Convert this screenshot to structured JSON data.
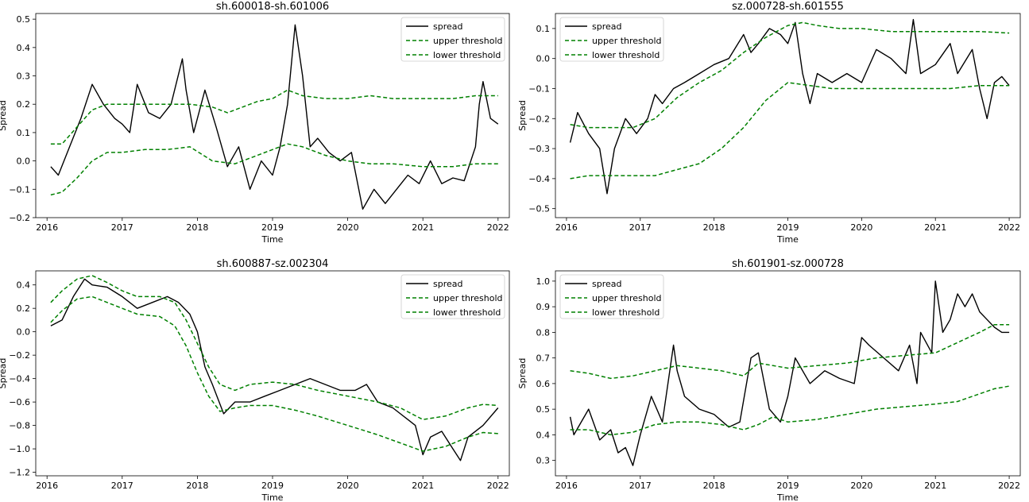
{
  "chart_data": [
    {
      "type": "line",
      "title": "sh.600018-sh.601006",
      "xlabel": "Time",
      "ylabel": "Spread",
      "xlim": [
        2015.85,
        2022.15
      ],
      "ylim": [
        -0.2,
        0.52
      ],
      "xticks": [
        2016,
        2017,
        2018,
        2019,
        2020,
        2021,
        2022
      ],
      "xtick_labels": [
        "2016",
        "2017",
        "2018",
        "2019",
        "2020",
        "2021",
        "2022"
      ],
      "yticks": [
        -0.2,
        -0.1,
        0.0,
        0.1,
        0.2,
        0.3,
        0.4,
        0.5
      ],
      "ytick_labels": [
        "−0.2",
        "−0.1",
        "0.0",
        "0.1",
        "0.2",
        "0.3",
        "0.4",
        "0.5"
      ],
      "legend_position": "top-right",
      "series": [
        {
          "name": "spread",
          "color": "#000000",
          "style": "solid",
          "x": [
            2016.05,
            2016.15,
            2016.3,
            2016.45,
            2016.6,
            2016.75,
            2016.9,
            2017.0,
            2017.1,
            2017.2,
            2017.35,
            2017.5,
            2017.65,
            2017.8,
            2017.85,
            2017.95,
            2018.1,
            2018.25,
            2018.4,
            2018.55,
            2018.7,
            2018.85,
            2019.0,
            2019.1,
            2019.2,
            2019.3,
            2019.4,
            2019.5,
            2019.6,
            2019.75,
            2019.9,
            2020.05,
            2020.2,
            2020.35,
            2020.5,
            2020.65,
            2020.8,
            2020.95,
            2021.1,
            2021.25,
            2021.4,
            2021.55,
            2021.7,
            2021.75,
            2021.8,
            2021.9,
            2022.0
          ],
          "y": [
            -0.02,
            -0.05,
            0.05,
            0.15,
            0.27,
            0.2,
            0.15,
            0.13,
            0.1,
            0.27,
            0.17,
            0.15,
            0.2,
            0.36,
            0.25,
            0.1,
            0.25,
            0.12,
            -0.02,
            0.05,
            -0.1,
            0.0,
            -0.05,
            0.05,
            0.2,
            0.48,
            0.3,
            0.05,
            0.08,
            0.03,
            0.0,
            0.03,
            -0.17,
            -0.1,
            -0.15,
            -0.1,
            -0.05,
            -0.08,
            0.0,
            -0.08,
            -0.06,
            -0.07,
            0.05,
            0.2,
            0.28,
            0.15,
            0.13
          ]
        },
        {
          "name": "upper threshold",
          "color": "#008000",
          "style": "dashed",
          "x": [
            2016.05,
            2016.2,
            2016.4,
            2016.6,
            2016.8,
            2017.0,
            2017.3,
            2017.6,
            2017.9,
            2018.2,
            2018.4,
            2018.6,
            2018.8,
            2019.0,
            2019.2,
            2019.4,
            2019.7,
            2020.0,
            2020.3,
            2020.6,
            2021.0,
            2021.4,
            2021.7,
            2022.0
          ],
          "y": [
            0.06,
            0.06,
            0.12,
            0.18,
            0.2,
            0.2,
            0.2,
            0.2,
            0.2,
            0.19,
            0.17,
            0.19,
            0.21,
            0.22,
            0.25,
            0.23,
            0.22,
            0.22,
            0.23,
            0.22,
            0.22,
            0.22,
            0.23,
            0.23
          ]
        },
        {
          "name": "lower threshold",
          "color": "#008000",
          "style": "dashed",
          "x": [
            2016.05,
            2016.2,
            2016.4,
            2016.6,
            2016.8,
            2017.0,
            2017.3,
            2017.6,
            2017.9,
            2018.2,
            2018.5,
            2018.8,
            2019.0,
            2019.2,
            2019.4,
            2019.7,
            2020.0,
            2020.3,
            2020.6,
            2021.0,
            2021.4,
            2021.7,
            2022.0
          ],
          "y": [
            -0.12,
            -0.11,
            -0.06,
            0.0,
            0.03,
            0.03,
            0.04,
            0.04,
            0.05,
            0.0,
            -0.01,
            0.02,
            0.04,
            0.06,
            0.05,
            0.02,
            0.0,
            -0.01,
            -0.01,
            -0.02,
            -0.02,
            -0.01,
            -0.01
          ]
        }
      ]
    },
    {
      "type": "line",
      "title": "sz.000728-sh.601555",
      "xlabel": "Time",
      "ylabel": "Spread",
      "xlim": [
        2015.85,
        2022.15
      ],
      "ylim": [
        -0.53,
        0.15
      ],
      "xticks": [
        2016,
        2017,
        2018,
        2019,
        2020,
        2021,
        2022
      ],
      "xtick_labels": [
        "2016",
        "2017",
        "2018",
        "2019",
        "2020",
        "2021",
        "2022"
      ],
      "yticks": [
        -0.5,
        -0.4,
        -0.3,
        -0.2,
        -0.1,
        0.0,
        0.1
      ],
      "ytick_labels": [
        "−0.5",
        "−0.4",
        "−0.3",
        "−0.2",
        "−0.1",
        "0.0",
        "0.1"
      ],
      "legend_position": "top-left",
      "series": [
        {
          "name": "spread",
          "color": "#000000",
          "style": "solid",
          "x": [
            2016.05,
            2016.15,
            2016.3,
            2016.45,
            2016.55,
            2016.65,
            2016.8,
            2016.95,
            2017.1,
            2017.2,
            2017.3,
            2017.45,
            2017.6,
            2017.8,
            2018.0,
            2018.2,
            2018.4,
            2018.5,
            2018.6,
            2018.75,
            2018.9,
            2019.0,
            2019.1,
            2019.2,
            2019.3,
            2019.4,
            2019.6,
            2019.8,
            2020.0,
            2020.2,
            2020.4,
            2020.6,
            2020.7,
            2020.8,
            2021.0,
            2021.2,
            2021.3,
            2021.5,
            2021.6,
            2021.7,
            2021.8,
            2021.9,
            2022.0
          ],
          "y": [
            -0.28,
            -0.18,
            -0.25,
            -0.3,
            -0.45,
            -0.3,
            -0.2,
            -0.25,
            -0.2,
            -0.12,
            -0.15,
            -0.1,
            -0.08,
            -0.05,
            -0.02,
            0.0,
            0.08,
            0.02,
            0.05,
            0.1,
            0.08,
            0.05,
            0.12,
            -0.05,
            -0.15,
            -0.05,
            -0.08,
            -0.05,
            -0.08,
            0.03,
            0.0,
            -0.05,
            0.13,
            -0.05,
            -0.02,
            0.05,
            -0.05,
            0.03,
            -0.1,
            -0.2,
            -0.08,
            -0.06,
            -0.09
          ]
        },
        {
          "name": "upper threshold",
          "color": "#008000",
          "style": "dashed",
          "x": [
            2016.05,
            2016.3,
            2016.6,
            2016.9,
            2017.2,
            2017.5,
            2017.8,
            2018.1,
            2018.4,
            2018.7,
            2019.0,
            2019.2,
            2019.4,
            2019.7,
            2020.0,
            2020.4,
            2020.8,
            2021.2,
            2021.6,
            2022.0
          ],
          "y": [
            -0.22,
            -0.23,
            -0.23,
            -0.23,
            -0.2,
            -0.13,
            -0.08,
            -0.04,
            0.02,
            0.07,
            0.11,
            0.12,
            0.11,
            0.1,
            0.1,
            0.09,
            0.09,
            0.09,
            0.09,
            0.085
          ]
        },
        {
          "name": "lower threshold",
          "color": "#008000",
          "style": "dashed",
          "x": [
            2016.05,
            2016.3,
            2016.6,
            2016.9,
            2017.2,
            2017.5,
            2017.8,
            2018.1,
            2018.4,
            2018.7,
            2019.0,
            2019.3,
            2019.6,
            2020.0,
            2020.4,
            2020.8,
            2021.2,
            2021.6,
            2022.0
          ],
          "y": [
            -0.4,
            -0.39,
            -0.39,
            -0.39,
            -0.39,
            -0.37,
            -0.35,
            -0.3,
            -0.23,
            -0.14,
            -0.08,
            -0.09,
            -0.1,
            -0.1,
            -0.1,
            -0.1,
            -0.1,
            -0.09,
            -0.09
          ]
        }
      ]
    },
    {
      "type": "line",
      "title": "sh.600887-sz.002304",
      "xlabel": "Time",
      "ylabel": "Spread",
      "xlim": [
        2015.85,
        2022.15
      ],
      "ylim": [
        -1.23,
        0.52
      ],
      "xticks": [
        2016,
        2017,
        2018,
        2019,
        2020,
        2021,
        2022
      ],
      "xtick_labels": [
        "2016",
        "2017",
        "2018",
        "2019",
        "2020",
        "2021",
        "2022"
      ],
      "yticks": [
        -1.2,
        -1.0,
        -0.8,
        -0.6,
        -0.4,
        -0.2,
        0.0,
        0.2,
        0.4
      ],
      "ytick_labels": [
        "−1.2",
        "−1.0",
        "−0.8",
        "−0.6",
        "−0.4",
        "−0.2",
        "0.0",
        "0.2",
        "0.4"
      ],
      "legend_position": "top-right",
      "series": [
        {
          "name": "spread",
          "color": "#000000",
          "style": "solid",
          "x": [
            2016.05,
            2016.2,
            2016.35,
            2016.5,
            2016.6,
            2016.8,
            2017.0,
            2017.2,
            2017.4,
            2017.6,
            2017.75,
            2017.9,
            2018.0,
            2018.1,
            2018.2,
            2018.35,
            2018.5,
            2018.7,
            2018.9,
            2019.1,
            2019.3,
            2019.5,
            2019.7,
            2019.9,
            2020.1,
            2020.25,
            2020.4,
            2020.6,
            2020.8,
            2020.9,
            2021.0,
            2021.1,
            2021.25,
            2021.4,
            2021.5,
            2021.6,
            2021.8,
            2022.0
          ],
          "y": [
            0.05,
            0.1,
            0.3,
            0.45,
            0.4,
            0.38,
            0.3,
            0.2,
            0.25,
            0.3,
            0.25,
            0.15,
            0.0,
            -0.3,
            -0.45,
            -0.7,
            -0.6,
            -0.6,
            -0.55,
            -0.5,
            -0.45,
            -0.4,
            -0.45,
            -0.5,
            -0.5,
            -0.45,
            -0.6,
            -0.65,
            -0.75,
            -0.8,
            -1.05,
            -0.9,
            -0.85,
            -1.0,
            -1.1,
            -0.9,
            -0.8,
            -0.65
          ]
        },
        {
          "name": "upper threshold",
          "color": "#008000",
          "style": "dashed",
          "x": [
            2016.05,
            2016.2,
            2016.4,
            2016.6,
            2016.8,
            2017.0,
            2017.2,
            2017.5,
            2017.7,
            2017.85,
            2018.0,
            2018.15,
            2018.3,
            2018.5,
            2018.7,
            2019.0,
            2019.3,
            2019.6,
            2020.0,
            2020.4,
            2020.7,
            2021.0,
            2021.3,
            2021.6,
            2021.8,
            2022.0
          ],
          "y": [
            0.25,
            0.35,
            0.45,
            0.48,
            0.42,
            0.35,
            0.3,
            0.3,
            0.25,
            0.1,
            -0.1,
            -0.3,
            -0.45,
            -0.5,
            -0.45,
            -0.43,
            -0.45,
            -0.5,
            -0.55,
            -0.6,
            -0.65,
            -0.75,
            -0.72,
            -0.65,
            -0.62,
            -0.63
          ]
        },
        {
          "name": "lower threshold",
          "color": "#008000",
          "style": "dashed",
          "x": [
            2016.05,
            2016.2,
            2016.4,
            2016.6,
            2016.8,
            2017.0,
            2017.2,
            2017.5,
            2017.7,
            2017.85,
            2018.0,
            2018.15,
            2018.3,
            2018.5,
            2018.7,
            2019.0,
            2019.3,
            2019.6,
            2020.0,
            2020.4,
            2020.7,
            2021.0,
            2021.3,
            2021.6,
            2021.8,
            2022.0
          ],
          "y": [
            0.08,
            0.18,
            0.28,
            0.3,
            0.25,
            0.2,
            0.15,
            0.13,
            0.05,
            -0.12,
            -0.35,
            -0.55,
            -0.68,
            -0.65,
            -0.63,
            -0.63,
            -0.67,
            -0.72,
            -0.8,
            -0.88,
            -0.95,
            -1.02,
            -0.98,
            -0.9,
            -0.86,
            -0.87
          ]
        }
      ]
    },
    {
      "type": "line",
      "title": "sh.601901-sz.000728",
      "xlabel": "Time",
      "ylabel": "Spread",
      "xlim": [
        2015.85,
        2022.15
      ],
      "ylim": [
        0.24,
        1.04
      ],
      "xticks": [
        2016,
        2017,
        2018,
        2019,
        2020,
        2021,
        2022
      ],
      "xtick_labels": [
        "2016",
        "2017",
        "2018",
        "2019",
        "2020",
        "2021",
        "2022"
      ],
      "yticks": [
        0.3,
        0.4,
        0.5,
        0.6,
        0.7,
        0.8,
        0.9,
        1.0
      ],
      "ytick_labels": [
        "0.3",
        "0.4",
        "0.5",
        "0.6",
        "0.7",
        "0.8",
        "0.9",
        "1.0"
      ],
      "legend_position": "top-left",
      "series": [
        {
          "name": "spread",
          "color": "#000000",
          "style": "solid",
          "x": [
            2016.05,
            2016.1,
            2016.3,
            2016.45,
            2016.6,
            2016.7,
            2016.8,
            2016.9,
            2017.0,
            2017.15,
            2017.3,
            2017.45,
            2017.5,
            2017.6,
            2017.8,
            2018.0,
            2018.2,
            2018.35,
            2018.5,
            2018.6,
            2018.75,
            2018.9,
            2019.0,
            2019.1,
            2019.3,
            2019.5,
            2019.7,
            2019.9,
            2020.0,
            2020.1,
            2020.3,
            2020.5,
            2020.65,
            2020.75,
            2020.8,
            2020.95,
            2021.0,
            2021.1,
            2021.2,
            2021.3,
            2021.4,
            2021.5,
            2021.6,
            2021.7,
            2021.8,
            2021.9,
            2022.0
          ],
          "y": [
            0.47,
            0.4,
            0.5,
            0.38,
            0.42,
            0.33,
            0.35,
            0.28,
            0.4,
            0.55,
            0.45,
            0.75,
            0.65,
            0.55,
            0.5,
            0.48,
            0.43,
            0.45,
            0.7,
            0.72,
            0.5,
            0.45,
            0.55,
            0.7,
            0.6,
            0.65,
            0.62,
            0.6,
            0.78,
            0.75,
            0.7,
            0.65,
            0.75,
            0.6,
            0.8,
            0.72,
            1.0,
            0.8,
            0.85,
            0.95,
            0.9,
            0.95,
            0.88,
            0.85,
            0.82,
            0.8,
            0.8
          ]
        },
        {
          "name": "upper threshold",
          "color": "#008000",
          "style": "dashed",
          "x": [
            2016.05,
            2016.3,
            2016.6,
            2016.9,
            2017.2,
            2017.5,
            2017.8,
            2018.1,
            2018.4,
            2018.6,
            2018.8,
            2019.0,
            2019.4,
            2019.8,
            2020.2,
            2020.6,
            2021.0,
            2021.3,
            2021.6,
            2021.8,
            2022.0
          ],
          "y": [
            0.65,
            0.64,
            0.62,
            0.63,
            0.65,
            0.67,
            0.66,
            0.65,
            0.63,
            0.68,
            0.67,
            0.66,
            0.67,
            0.68,
            0.7,
            0.71,
            0.72,
            0.76,
            0.8,
            0.83,
            0.83
          ]
        },
        {
          "name": "lower threshold",
          "color": "#008000",
          "style": "dashed",
          "x": [
            2016.05,
            2016.3,
            2016.6,
            2016.9,
            2017.2,
            2017.5,
            2017.8,
            2018.1,
            2018.4,
            2018.6,
            2018.8,
            2019.0,
            2019.4,
            2019.8,
            2020.2,
            2020.6,
            2021.0,
            2021.3,
            2021.6,
            2021.8,
            2022.0
          ],
          "y": [
            0.42,
            0.42,
            0.4,
            0.41,
            0.44,
            0.45,
            0.45,
            0.44,
            0.42,
            0.44,
            0.47,
            0.45,
            0.46,
            0.48,
            0.5,
            0.51,
            0.52,
            0.53,
            0.56,
            0.58,
            0.59
          ]
        }
      ]
    }
  ]
}
